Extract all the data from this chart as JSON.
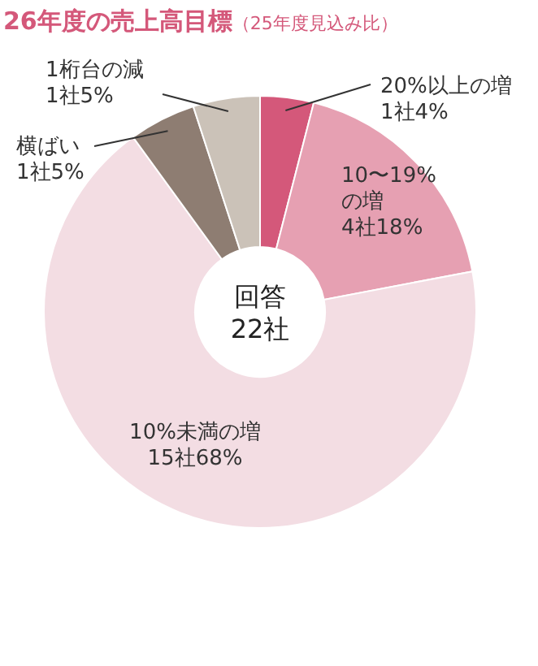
{
  "chart_data": {
    "type": "donut",
    "title": "26年度の売上高目標",
    "subtitle": "（25年度見込み比）",
    "categories": [
      "20%以上の増",
      "10〜19%\nの増",
      "10%未満の増",
      "横ばい",
      "1桁台の減"
    ],
    "values": [
      4,
      18,
      68,
      5,
      5
    ],
    "value_labels": [
      "1社4%",
      "4社18%",
      "15社68%",
      "1社5%",
      "1社5%"
    ],
    "colors": [
      "#d4587a",
      "#e6a0b2",
      "#f3dde3",
      "#8e7d72",
      "#cbc2b8"
    ],
    "annotations": [
      "回答\n22社"
    ]
  }
}
